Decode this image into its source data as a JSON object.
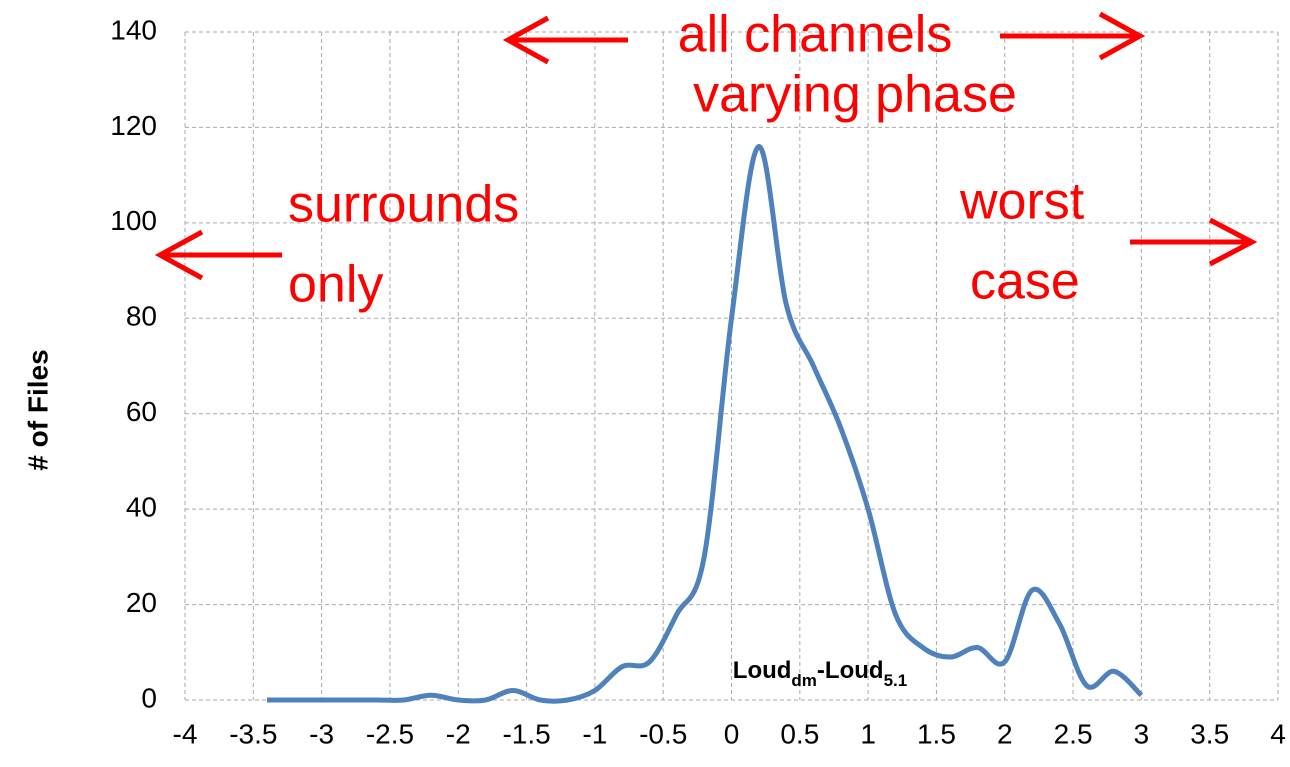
{
  "chart_data": {
    "type": "line",
    "y_label": "# of Files",
    "x_label_parts": [
      "Loud",
      "dm",
      "-Loud",
      "5.1"
    ],
    "annotations": [
      "all channels",
      "varying phase",
      "surrounds",
      "only",
      "worst",
      "case"
    ],
    "x": [
      -3.4,
      -3.2,
      -3,
      -2.8,
      -2.6,
      -2.4,
      -2.2,
      -2,
      -1.8,
      -1.6,
      -1.4,
      -1.2,
      -1,
      -0.8,
      -0.6,
      -0.4,
      -0.2,
      0,
      0.2,
      0.4,
      0.6,
      0.8,
      1,
      1.2,
      1.4,
      1.6,
      1.8,
      2,
      2.2,
      2.4,
      2.6,
      2.8,
      3
    ],
    "series": [
      {
        "color": "#4f81bd",
        "values": [
          0,
          0,
          0,
          0,
          0,
          0,
          1,
          0,
          0,
          2,
          0,
          0,
          2,
          7,
          8,
          18,
          30,
          80,
          116,
          83,
          70,
          57,
          40,
          18,
          11,
          9,
          11,
          8,
          23,
          16,
          3,
          6,
          1
        ]
      }
    ],
    "xlim": [
      -4,
      4
    ],
    "xticks": [
      -4,
      -3.5,
      -3,
      -2.5,
      -2,
      -1.5,
      -1,
      -0.5,
      0,
      0.5,
      1,
      1.5,
      2,
      2.5,
      3,
      3.5,
      4
    ],
    "ylim": [
      0,
      140
    ],
    "yticks": [
      0,
      20,
      40,
      60,
      80,
      100,
      120,
      140
    ],
    "grid": true,
    "annotation_color": "#ff0000"
  }
}
